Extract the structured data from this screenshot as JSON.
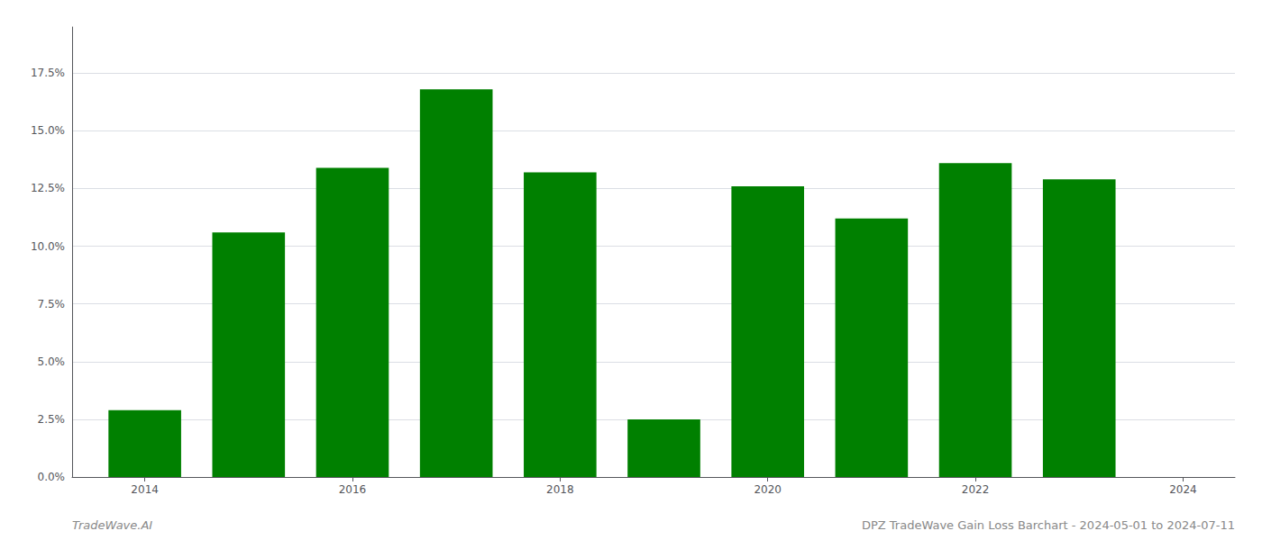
{
  "chart_data": {
    "type": "bar",
    "x": [
      2014,
      2015,
      2016,
      2017,
      2018,
      2019,
      2020,
      2021,
      2022,
      2023
    ],
    "values": [
      0.029,
      0.106,
      0.134,
      0.168,
      0.132,
      0.025,
      0.126,
      0.112,
      0.136,
      0.129
    ],
    "color": "#008000",
    "xlim": [
      2013.3,
      2024.5
    ],
    "xticks": [
      2014,
      2016,
      2018,
      2020,
      2022,
      2024
    ],
    "ylim": [
      0,
      0.195
    ],
    "yticks": [
      {
        "value": 0.0,
        "label": "0.0%"
      },
      {
        "value": 0.025,
        "label": "2.5%"
      },
      {
        "value": 0.05,
        "label": "5.0%"
      },
      {
        "value": 0.075,
        "label": "7.5%"
      },
      {
        "value": 0.1,
        "label": "10.0%"
      },
      {
        "value": 0.125,
        "label": "12.5%"
      },
      {
        "value": 0.15,
        "label": "15.0%"
      },
      {
        "value": 0.175,
        "label": "17.5%"
      }
    ],
    "grid": true,
    "annotations": [
      "TradeWave.AI",
      "DPZ TradeWave Gain Loss Barchart - 2024-05-01 to 2024-07-11"
    ]
  }
}
